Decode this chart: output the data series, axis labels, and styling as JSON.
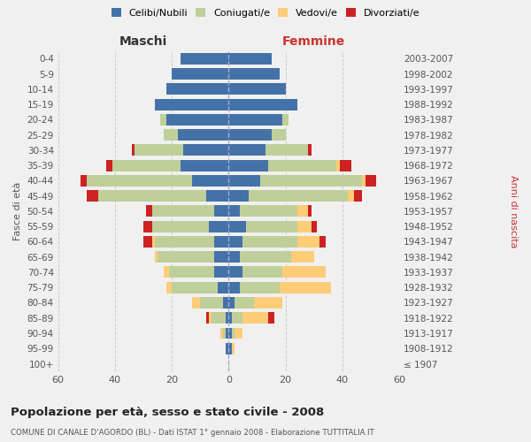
{
  "age_groups": [
    "100+",
    "95-99",
    "90-94",
    "85-89",
    "80-84",
    "75-79",
    "70-74",
    "65-69",
    "60-64",
    "55-59",
    "50-54",
    "45-49",
    "40-44",
    "35-39",
    "30-34",
    "25-29",
    "20-24",
    "15-19",
    "10-14",
    "5-9",
    "0-4"
  ],
  "birth_years": [
    "≤ 1907",
    "1908-1912",
    "1913-1917",
    "1918-1922",
    "1923-1927",
    "1928-1932",
    "1933-1937",
    "1938-1942",
    "1943-1947",
    "1948-1952",
    "1953-1957",
    "1958-1962",
    "1963-1967",
    "1968-1972",
    "1973-1977",
    "1978-1982",
    "1983-1987",
    "1988-1992",
    "1993-1997",
    "1998-2002",
    "2003-2007"
  ],
  "maschi": {
    "celibi": [
      0,
      1,
      1,
      1,
      2,
      4,
      5,
      5,
      5,
      7,
      5,
      8,
      13,
      17,
      16,
      18,
      22,
      26,
      22,
      20,
      17
    ],
    "coniugati": [
      0,
      0,
      1,
      5,
      8,
      16,
      16,
      20,
      21,
      20,
      22,
      38,
      37,
      24,
      17,
      5,
      2,
      0,
      0,
      0,
      0
    ],
    "vedovi": [
      0,
      0,
      1,
      1,
      3,
      2,
      2,
      1,
      1,
      0,
      0,
      0,
      0,
      0,
      0,
      0,
      0,
      0,
      0,
      0,
      0
    ],
    "divorziati": [
      0,
      0,
      0,
      1,
      0,
      0,
      0,
      0,
      3,
      3,
      2,
      4,
      2,
      2,
      1,
      0,
      0,
      0,
      0,
      0,
      0
    ]
  },
  "femmine": {
    "nubili": [
      0,
      1,
      1,
      1,
      2,
      4,
      5,
      4,
      5,
      6,
      4,
      7,
      11,
      14,
      13,
      15,
      19,
      24,
      20,
      18,
      15
    ],
    "coniugate": [
      0,
      0,
      1,
      4,
      7,
      14,
      14,
      18,
      19,
      18,
      20,
      35,
      36,
      24,
      15,
      5,
      2,
      0,
      0,
      0,
      0
    ],
    "vedove": [
      0,
      1,
      3,
      9,
      10,
      18,
      15,
      8,
      8,
      5,
      4,
      2,
      1,
      1,
      0,
      0,
      0,
      0,
      0,
      0,
      0
    ],
    "divorziate": [
      0,
      0,
      0,
      2,
      0,
      0,
      0,
      0,
      2,
      2,
      1,
      3,
      4,
      4,
      1,
      0,
      0,
      0,
      0,
      0,
      0
    ]
  },
  "colors": {
    "celibi_nubili": "#4472A8",
    "coniugati": "#BECF9A",
    "vedovi": "#FFCC77",
    "divorziati": "#CC2222"
  },
  "title": "Popolazione per età, sesso e stato civile - 2008",
  "subtitle": "COMUNE DI CANALE D'AGORDO (BL) - Dati ISTAT 1° gennaio 2008 - Elaborazione TUTTITALIA.IT",
  "xlabel_left": "Maschi",
  "xlabel_right": "Femmine",
  "ylabel_left": "Fasce di età",
  "ylabel_right": "Anni di nascita",
  "xlim": 60,
  "background_color": "#f0f0f0"
}
